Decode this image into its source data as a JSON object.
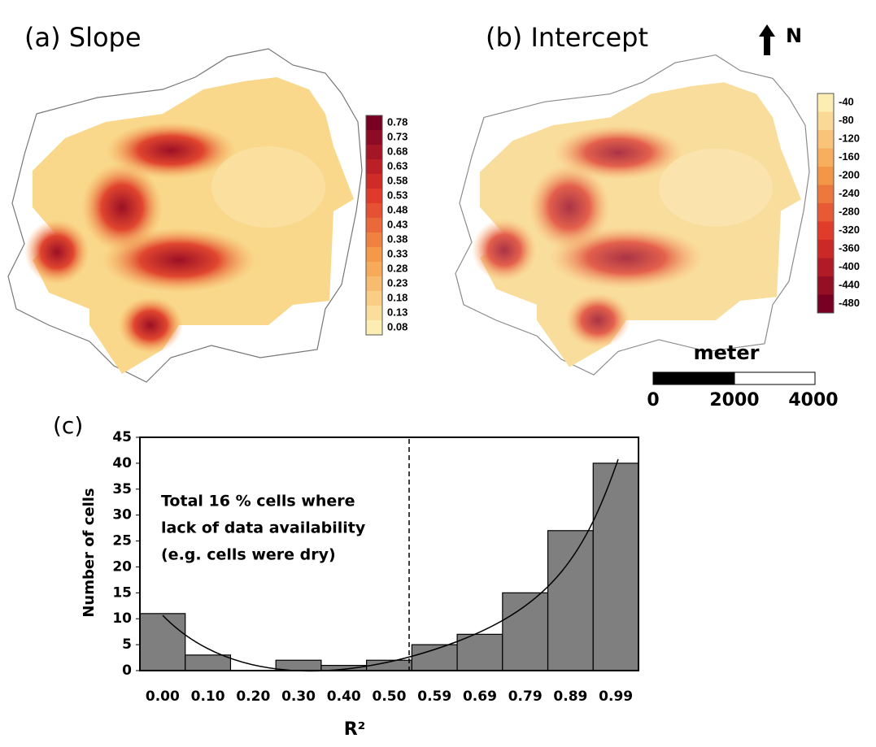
{
  "maps": [
    {
      "title": "(a) Slope",
      "legend_labels": [
        0.78,
        0.73,
        0.68,
        0.63,
        0.58,
        0.53,
        0.48,
        0.43,
        0.38,
        0.33,
        0.28,
        0.23,
        0.18,
        0.13,
        0.08
      ]
    },
    {
      "title": "(b) Intercept",
      "legend_labels": [
        -40,
        -80,
        -120,
        -160,
        -200,
        -240,
        -280,
        -320,
        -360,
        -400,
        -440,
        -480
      ]
    }
  ],
  "north": "N",
  "scale_bar": {
    "unit": "meter",
    "labels": [
      0,
      2000,
      4000
    ]
  },
  "chart_data": {
    "type": "bar",
    "label": "(c)",
    "categories": [
      "0.00",
      "0.10",
      "0.20",
      "0.30",
      "0.40",
      "0.50",
      "0.59",
      "0.69",
      "0.79",
      "0.89",
      "0.99"
    ],
    "values": [
      11,
      3,
      0,
      2,
      1,
      2,
      5,
      7,
      15,
      27,
      40
    ],
    "color": "#7f7f7f",
    "ylim": [
      0,
      45
    ],
    "yticks": [
      0,
      5,
      10,
      15,
      20,
      25,
      30,
      35,
      40,
      45
    ],
    "y_label": "Number of cells",
    "x_label": "R²",
    "annotation": [
      "Total 16 % cells where",
      "lack of data availability",
      "(e.g. cells were dry)"
    ]
  }
}
